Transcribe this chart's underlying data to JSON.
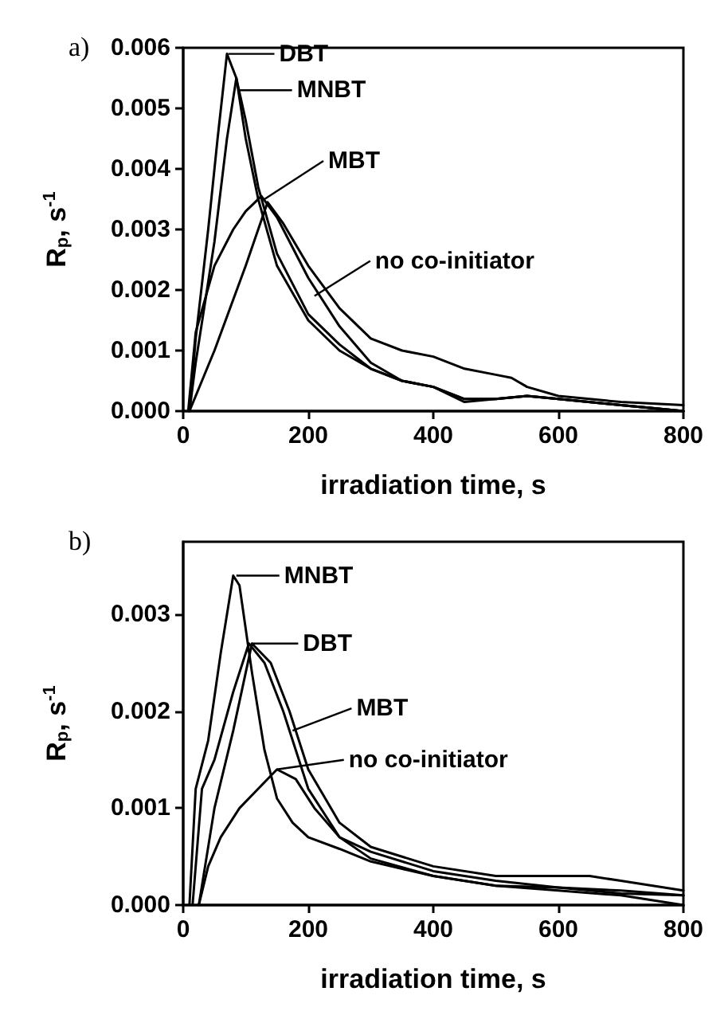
{
  "chart_data": [
    {
      "type": "line",
      "title": "a)",
      "xlabel": "irradiation time, s",
      "ylabel": "R$_{p}$, s$^{-1}$",
      "xlim": [
        0,
        800
      ],
      "xticks": [
        0,
        200,
        400,
        600,
        800
      ],
      "ylim": [
        0,
        0.006
      ],
      "yticks": [
        {
          "value": 0,
          "label": "0.000"
        },
        {
          "value": 0.001,
          "label": "0.001"
        },
        {
          "value": 0.002,
          "label": "0.002"
        },
        {
          "value": 0.003,
          "label": "0.003"
        },
        {
          "value": 0.004,
          "label": "0.004"
        },
        {
          "value": 0.005,
          "label": "0.005"
        },
        {
          "value": 0.006,
          "label": "0.006"
        }
      ],
      "marker": "none",
      "line_style": "solid",
      "series": [
        {
          "color": "#000000",
          "x": [
            10,
            20,
            40,
            55,
            70,
            85,
            100,
            120,
            150,
            200,
            250,
            300,
            350,
            400,
            450,
            500,
            550,
            600,
            700,
            800
          ],
          "values": [
            0,
            0.0012,
            0.003,
            0.0045,
            0.0059,
            0.0055,
            0.0045,
            0.0035,
            0.0024,
            0.0015,
            0.001,
            0.0007,
            0.0005,
            0.0004,
            0.0002,
            0.0002,
            0.00025,
            0.0002,
            0.0001,
            0
          ]
        },
        {
          "color": "#000000",
          "x": [
            10,
            20,
            50,
            70,
            85,
            100,
            120,
            150,
            200,
            250,
            300,
            350,
            400,
            450,
            500,
            550,
            600,
            700,
            800
          ],
          "values": [
            0,
            0.0008,
            0.0028,
            0.0045,
            0.0055,
            0.0048,
            0.0037,
            0.0026,
            0.0016,
            0.0011,
            0.0007,
            0.0005,
            0.0004,
            0.0002,
            0.0002,
            0.00025,
            0.0002,
            0.0001,
            0
          ]
        },
        {
          "color": "#000000",
          "x": [
            8,
            20,
            50,
            80,
            100,
            125,
            150,
            200,
            250,
            300,
            350,
            400,
            450,
            500,
            550,
            600,
            700,
            800
          ],
          "values": [
            0,
            0.0013,
            0.0024,
            0.003,
            0.0033,
            0.00355,
            0.0032,
            0.0022,
            0.0014,
            0.0008,
            0.0005,
            0.0004,
            0.00015,
            0.0002,
            0.00025,
            0.0002,
            0.0001,
            0
          ]
        },
        {
          "color": "#000000",
          "x": [
            10,
            50,
            100,
            135,
            160,
            200,
            250,
            300,
            350,
            400,
            450,
            500,
            525,
            550,
            600,
            700,
            800
          ],
          "values": [
            0,
            0.001,
            0.0024,
            0.00345,
            0.0031,
            0.0024,
            0.0017,
            0.0012,
            0.001,
            0.0009,
            0.0007,
            0.0006,
            0.00055,
            0.0004,
            0.00025,
            0.00015,
            0.0001
          ]
        }
      ],
      "annotations": [
        {
          "text": "DBT",
          "x": 72,
          "y": 0.0059
        },
        {
          "text": "MNBT",
          "x": 90,
          "y": 0.0053
        },
        {
          "text": "MBT",
          "x": 130,
          "y": 0.0035
        },
        {
          "text": "no co-initiator",
          "x": 210,
          "y": 0.0019
        }
      ]
    },
    {
      "type": "line",
      "title": "b)",
      "xlabel": "irradiation time, s",
      "ylabel": "R$_{p}$, s$^{-1}$",
      "xlim": [
        0,
        800
      ],
      "xticks": [
        0,
        200,
        400,
        600,
        800
      ],
      "ylim": [
        0,
        0.00375
      ],
      "yticks": [
        {
          "value": 0,
          "label": "0.000"
        },
        {
          "value": 0.001,
          "label": "0.001"
        },
        {
          "value": 0.002,
          "label": "0.002"
        },
        {
          "value": 0.003,
          "label": "0.003"
        }
      ],
      "marker": "none",
      "line_style": "solid",
      "series": [
        {
          "color": "#000000",
          "x": [
            10,
            20,
            40,
            60,
            80,
            90,
            110,
            130,
            150,
            175,
            200,
            250,
            300,
            400,
            500,
            600,
            700,
            800
          ],
          "values": [
            0,
            0.0012,
            0.0017,
            0.0026,
            0.0034,
            0.0033,
            0.0024,
            0.0016,
            0.0011,
            0.00085,
            0.0007,
            0.00058,
            0.00045,
            0.0003,
            0.0002,
            0.00015,
            0.0001,
            0
          ]
        },
        {
          "color": "#000000",
          "x": [
            15,
            30,
            50,
            80,
            105,
            130,
            160,
            200,
            250,
            300,
            400,
            500,
            600,
            700,
            800
          ],
          "values": [
            0,
            0.0012,
            0.0015,
            0.0022,
            0.0027,
            0.0025,
            0.002,
            0.0012,
            0.0007,
            0.00048,
            0.0003,
            0.0002,
            0.00018,
            0.00015,
            0.0001
          ]
        },
        {
          "color": "#000000",
          "x": [
            25,
            50,
            80,
            110,
            140,
            170,
            200,
            250,
            300,
            350,
            400,
            500,
            600,
            650,
            700,
            800
          ],
          "values": [
            0,
            0.001,
            0.0018,
            0.0027,
            0.0025,
            0.002,
            0.0014,
            0.00085,
            0.0006,
            0.0005,
            0.0004,
            0.0003,
            0.0003,
            0.0003,
            0.00025,
            0.00015
          ]
        },
        {
          "color": "#000000",
          "x": [
            25,
            40,
            60,
            90,
            120,
            150,
            180,
            210,
            250,
            300,
            400,
            500,
            600,
            700,
            800
          ],
          "values": [
            0,
            0.0004,
            0.0007,
            0.001,
            0.0012,
            0.0014,
            0.0013,
            0.001,
            0.0007,
            0.00055,
            0.00035,
            0.00025,
            0.00018,
            0.00012,
            0.0001
          ]
        }
      ],
      "annotations": [
        {
          "text": "MNBT",
          "x": 85,
          "y": 0.0034
        },
        {
          "text": "DBT",
          "x": 110,
          "y": 0.0027
        },
        {
          "text": "MBT",
          "x": 175,
          "y": 0.0018
        },
        {
          "text": "no co-initiator",
          "x": 150,
          "y": 0.0014
        }
      ]
    }
  ]
}
